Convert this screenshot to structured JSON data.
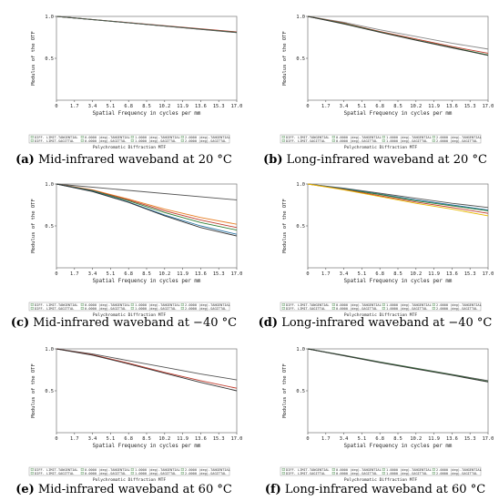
{
  "chart_data": [
    {
      "id": "a",
      "type": "line",
      "caption_letter": "(a)",
      "caption_text": "Mid-infrared waveband at 20 °C",
      "ylabel": "Modulus of the OTF",
      "xlabel": "Spatial Frequency in cycles per mm",
      "footer": "Polychromatic Diffraction MTF",
      "xlim": [
        0,
        17.0
      ],
      "ylim": [
        0,
        1.0
      ],
      "xticks": [
        "0",
        "1.7",
        "3.4",
        "5.1",
        "6.8",
        "8.5",
        "10.2",
        "11.9",
        "13.6",
        "15.3",
        "17.0"
      ],
      "yticks": [
        "0.5",
        "1.0"
      ],
      "legend": [
        "DIFF. LIMIT-TANGENTIAL",
        "DIFF. LIMIT-SAGITTAL",
        "0.0000 (deg)-TANGENTIAL",
        "0.0000 (deg)-SAGITTAL",
        "1.0000 (deg)-TANGENTIAL",
        "1.0000 (deg)-SAGITTAL",
        "2.0000 (deg)-TANGENTIAL",
        "2.0000 (deg)-SAGITTAL"
      ],
      "series": [
        {
          "color": "#c0392b",
          "x": [
            0,
            17
          ],
          "y": [
            1.0,
            0.815
          ]
        },
        {
          "color": "#444444",
          "x": [
            0,
            17
          ],
          "y": [
            1.0,
            0.81
          ]
        },
        {
          "color": "#2e7d32",
          "x": [
            0,
            17
          ],
          "y": [
            1.0,
            0.808
          ]
        },
        {
          "color": "#555555",
          "x": [
            0,
            17
          ],
          "y": [
            1.0,
            0.806
          ]
        }
      ]
    },
    {
      "id": "b",
      "type": "line",
      "caption_letter": "(b)",
      "caption_text": "Long-infrared waveband at 20 °C",
      "ylabel": "Modulus of the OTF",
      "xlabel": "Spatial Frequency in cycles per mm",
      "footer": "Polychromatic Diffraction MTF",
      "xlim": [
        0,
        17.0
      ],
      "ylim": [
        0,
        1.0
      ],
      "xticks": [
        "0",
        "1.7",
        "3.4",
        "5.1",
        "6.8",
        "8.5",
        "10.2",
        "11.9",
        "13.6",
        "15.3",
        "17.0"
      ],
      "yticks": [
        "0.5",
        "1.0"
      ],
      "legend": [
        "DIFF. LIMIT-TANGENTIAL",
        "DIFF. LIMIT-SAGITTAL",
        "0.0000 (deg)-TANGENTIAL",
        "0.0000 (deg)-SAGITTAL",
        "1.0000 (deg)-TANGENTIAL",
        "1.0000 (deg)-SAGITTAL",
        "2.0000 (deg)-TANGENTIAL",
        "2.0000 (deg)-SAGITTAL"
      ],
      "series": [
        {
          "color": "#888888",
          "x": [
            0,
            3.4,
            6.8,
            10.2,
            13.6,
            17
          ],
          "y": [
            1.0,
            0.93,
            0.84,
            0.76,
            0.68,
            0.61
          ]
        },
        {
          "color": "#c0392b",
          "x": [
            0,
            3.4,
            6.8,
            10.2,
            13.6,
            17
          ],
          "y": [
            1.0,
            0.92,
            0.82,
            0.73,
            0.64,
            0.56
          ]
        },
        {
          "color": "#2e7d32",
          "x": [
            0,
            3.4,
            6.8,
            10.2,
            13.6,
            17
          ],
          "y": [
            1.0,
            0.915,
            0.815,
            0.72,
            0.63,
            0.54
          ]
        },
        {
          "color": "#333333",
          "x": [
            0,
            3.4,
            6.8,
            10.2,
            13.6,
            17
          ],
          "y": [
            1.0,
            0.91,
            0.81,
            0.715,
            0.625,
            0.535
          ]
        }
      ]
    },
    {
      "id": "c",
      "type": "line",
      "caption_letter": "(c)",
      "caption_text": "Mid-infrared waveband at −40 °C",
      "ylabel": "Modulus of the OTF",
      "xlabel": "Spatial Frequency in cycles per mm",
      "footer": "Polychromatic Diffraction MTF",
      "xlim": [
        0,
        17.0
      ],
      "ylim": [
        0,
        1.0
      ],
      "xticks": [
        "0",
        "1.7",
        "3.4",
        "5.1",
        "6.8",
        "8.5",
        "10.2",
        "11.9",
        "13.6",
        "15.3",
        "17.0"
      ],
      "yticks": [
        "0.5",
        "1.0"
      ],
      "legend": [
        "DIFF. LIMIT-TANGENTIAL",
        "DIFF. LIMIT-SAGITTAL",
        "0.0000 (deg)-TANGENTIAL",
        "0.0000 (deg)-SAGITTAL",
        "1.0000 (deg)-TANGENTIAL",
        "1.0000 (deg)-SAGITTAL",
        "2.0000 (deg)-TANGENTIAL",
        "2.0000 (deg)-SAGITTAL"
      ],
      "series": [
        {
          "color": "#555555",
          "x": [
            0,
            17
          ],
          "y": [
            1.0,
            0.81
          ]
        },
        {
          "color": "#e67e22",
          "x": [
            0,
            3.4,
            6.8,
            10.2,
            13.6,
            17
          ],
          "y": [
            1.0,
            0.93,
            0.82,
            0.7,
            0.6,
            0.52
          ]
        },
        {
          "color": "#c0392b",
          "x": [
            0,
            3.4,
            6.8,
            10.2,
            13.6,
            17
          ],
          "y": [
            1.0,
            0.925,
            0.81,
            0.68,
            0.57,
            0.48
          ]
        },
        {
          "color": "#2e7d32",
          "x": [
            0,
            3.4,
            6.8,
            10.2,
            13.6,
            17
          ],
          "y": [
            1.0,
            0.92,
            0.8,
            0.66,
            0.54,
            0.45
          ]
        },
        {
          "color": "#2471a3",
          "x": [
            0,
            3.4,
            6.8,
            10.2,
            13.6,
            17
          ],
          "y": [
            1.0,
            0.915,
            0.785,
            0.63,
            0.5,
            0.4
          ]
        },
        {
          "color": "#333333",
          "x": [
            0,
            3.4,
            6.8,
            10.2,
            13.6,
            17
          ],
          "y": [
            1.0,
            0.91,
            0.78,
            0.62,
            0.48,
            0.38
          ]
        }
      ]
    },
    {
      "id": "d",
      "type": "line",
      "caption_letter": "(d)",
      "caption_text": "Long-infrared waveband at −40 °C",
      "ylabel": "Modulus of the OTF",
      "xlabel": "Spatial Frequency in cycles per mm",
      "footer": "Polychromatic Diffraction MTF",
      "xlim": [
        0,
        17.0
      ],
      "ylim": [
        0,
        1.0
      ],
      "xticks": [
        "0",
        "1.7",
        "3.4",
        "5.1",
        "6.8",
        "8.5",
        "10.2",
        "11.9",
        "13.6",
        "15.3",
        "17.0"
      ],
      "yticks": [
        "0.5",
        "1.0"
      ],
      "legend": [
        "DIFF. LIMIT-TANGENTIAL",
        "DIFF. LIMIT-SAGITTAL",
        "0.0000 (deg)-TANGENTIAL",
        "0.0000 (deg)-SAGITTAL",
        "1.0000 (deg)-TANGENTIAL",
        "1.0000 (deg)-SAGITTAL",
        "2.0000 (deg)-TANGENTIAL",
        "2.0000 (deg)-SAGITTAL"
      ],
      "series": [
        {
          "color": "#555555",
          "x": [
            0,
            3.4,
            6.8,
            10.2,
            13.6,
            17
          ],
          "y": [
            1.0,
            0.95,
            0.89,
            0.83,
            0.77,
            0.72
          ]
        },
        {
          "color": "#2471a3",
          "x": [
            0,
            3.4,
            6.8,
            10.2,
            13.6,
            17
          ],
          "y": [
            1.0,
            0.945,
            0.88,
            0.81,
            0.75,
            0.69
          ]
        },
        {
          "color": "#2e7d32",
          "x": [
            0,
            3.4,
            6.8,
            10.2,
            13.6,
            17
          ],
          "y": [
            1.0,
            0.94,
            0.875,
            0.8,
            0.74,
            0.68
          ]
        },
        {
          "color": "#c0392b",
          "x": [
            0,
            3.4,
            6.8,
            10.2,
            13.6,
            17
          ],
          "y": [
            1.0,
            0.935,
            0.86,
            0.785,
            0.72,
            0.65
          ]
        },
        {
          "color": "#e6b800",
          "x": [
            0,
            3.4,
            6.8,
            10.2,
            13.6,
            17
          ],
          "y": [
            1.0,
            0.93,
            0.85,
            0.77,
            0.7,
            0.62
          ]
        }
      ]
    },
    {
      "id": "e",
      "type": "line",
      "caption_letter": "(e)",
      "caption_text": "Mid-infrared waveband at 60 °C",
      "ylabel": "Modulus of the OTF",
      "xlabel": "Spatial Frequency in cycles per mm",
      "footer": "Polychromatic Diffraction MTF",
      "xlim": [
        0,
        17.0
      ],
      "ylim": [
        0,
        1.0
      ],
      "xticks": [
        "0",
        "1.7",
        "3.4",
        "5.1",
        "6.8",
        "8.5",
        "10.2",
        "11.9",
        "13.6",
        "15.3",
        "17.0"
      ],
      "yticks": [
        "0.5",
        "1.0"
      ],
      "legend": [
        "DIFF. LIMIT-TANGENTIAL",
        "DIFF. LIMIT-SAGITTAL",
        "0.0000 (deg)-TANGENTIAL",
        "0.0000 (deg)-SAGITTAL",
        "1.0000 (deg)-TANGENTIAL",
        "1.0000 (deg)-SAGITTAL",
        "2.0000 (deg)-TANGENTIAL",
        "2.0000 (deg)-SAGITTAL"
      ],
      "series": [
        {
          "color": "#555555",
          "x": [
            0,
            3.4,
            6.8,
            10.2,
            13.6,
            17
          ],
          "y": [
            1.0,
            0.94,
            0.86,
            0.78,
            0.7,
            0.63
          ]
        },
        {
          "color": "#c0392b",
          "x": [
            0,
            3.4,
            6.8,
            10.2,
            13.6,
            17
          ],
          "y": [
            1.0,
            0.93,
            0.83,
            0.72,
            0.62,
            0.53
          ]
        },
        {
          "color": "#333333",
          "x": [
            0,
            3.4,
            6.8,
            10.2,
            13.6,
            17
          ],
          "y": [
            1.0,
            0.925,
            0.82,
            0.71,
            0.6,
            0.5
          ]
        }
      ]
    },
    {
      "id": "f",
      "type": "line",
      "caption_letter": "(f)",
      "caption_text": "Long-infrared waveband at 60 °C",
      "ylabel": "Modulus of the OTF",
      "xlabel": "Spatial Frequency in cycles per mm",
      "footer": "Polychromatic Diffraction MTF",
      "xlim": [
        0,
        17.0
      ],
      "ylim": [
        0,
        1.0
      ],
      "xticks": [
        "0",
        "1.7",
        "3.4",
        "5.1",
        "6.8",
        "8.5",
        "10.2",
        "11.9",
        "13.6",
        "15.3",
        "17.0"
      ],
      "yticks": [
        "0.5",
        "1.0"
      ],
      "legend": [
        "DIFF. LIMIT-TANGENTIAL",
        "DIFF. LIMIT-SAGITTAL",
        "0.0000 (deg)-TANGENTIAL",
        "0.0000 (deg)-SAGITTAL",
        "1.0000 (deg)-TANGENTIAL",
        "1.0000 (deg)-SAGITTAL",
        "2.0000 (deg)-TANGENTIAL",
        "2.0000 (deg)-SAGITTAL"
      ],
      "series": [
        {
          "color": "#555555",
          "x": [
            0,
            3.4,
            6.8,
            10.2,
            13.6,
            17
          ],
          "y": [
            1.0,
            0.925,
            0.845,
            0.77,
            0.695,
            0.62
          ]
        },
        {
          "color": "#2e7d32",
          "x": [
            0,
            3.4,
            6.8,
            10.2,
            13.6,
            17
          ],
          "y": [
            1.0,
            0.92,
            0.84,
            0.765,
            0.69,
            0.61
          ]
        },
        {
          "color": "#333333",
          "x": [
            0,
            3.4,
            6.8,
            10.2,
            13.6,
            17
          ],
          "y": [
            1.0,
            0.918,
            0.836,
            0.76,
            0.685,
            0.605
          ]
        }
      ]
    }
  ]
}
